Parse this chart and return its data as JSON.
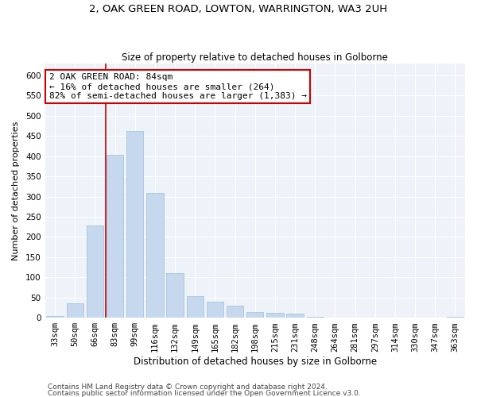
{
  "title1": "2, OAK GREEN ROAD, LOWTON, WARRINGTON, WA3 2UH",
  "title2": "Size of property relative to detached houses in Golborne",
  "xlabel": "Distribution of detached houses by size in Golborne",
  "ylabel": "Number of detached properties",
  "categories": [
    "33sqm",
    "50sqm",
    "66sqm",
    "83sqm",
    "99sqm",
    "116sqm",
    "132sqm",
    "149sqm",
    "165sqm",
    "182sqm",
    "198sqm",
    "215sqm",
    "231sqm",
    "248sqm",
    "264sqm",
    "281sqm",
    "297sqm",
    "314sqm",
    "330sqm",
    "347sqm",
    "363sqm"
  ],
  "values": [
    5,
    35,
    228,
    403,
    463,
    308,
    111,
    54,
    40,
    30,
    15,
    13,
    10,
    3,
    0,
    0,
    0,
    0,
    0,
    0,
    2
  ],
  "bar_color": "#c5d8ed",
  "bar_edge_color": "#a8c4de",
  "vline_index": 3,
  "vline_color": "#cc0000",
  "annotation_text": "2 OAK GREEN ROAD: 84sqm\n← 16% of detached houses are smaller (264)\n82% of semi-detached houses are larger (1,383) →",
  "annotation_box_color": "white",
  "annotation_box_edge_color": "#cc0000",
  "ylim": [
    0,
    630
  ],
  "yticks": [
    0,
    50,
    100,
    150,
    200,
    250,
    300,
    350,
    400,
    450,
    500,
    550,
    600
  ],
  "footer1": "Contains HM Land Registry data © Crown copyright and database right 2024.",
  "footer2": "Contains public sector information licensed under the Open Government Licence v3.0.",
  "bg_color": "#eef2f9",
  "title1_fontsize": 9.5,
  "title2_fontsize": 8.5,
  "xlabel_fontsize": 8.5,
  "ylabel_fontsize": 8,
  "tick_fontsize": 7.5,
  "annotation_fontsize": 8,
  "footer_fontsize": 6.5
}
